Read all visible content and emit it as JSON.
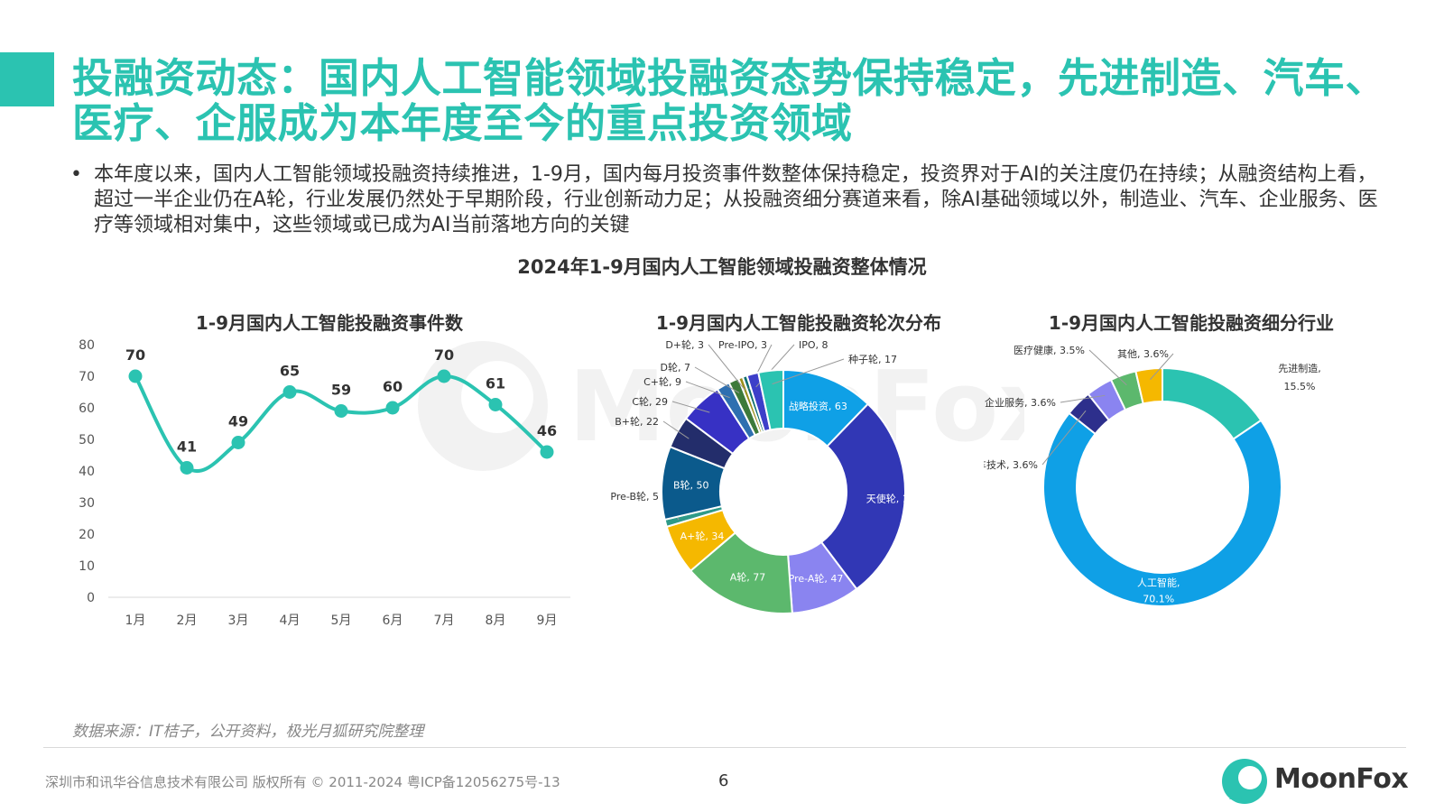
{
  "title": "投融资动态：国内人工智能领域投融资态势保持稳定，先进制造、汽车、医疗、企服成为本年度至今的重点投资领域",
  "bullet": {
    "symbol": "•",
    "text": "本年度以来，国内人工智能领域投融资持续推进，1-9月，国内每月投资事件数整体保持稳定，投资界对于AI的关注度仍在持续；从融资结构上看，超过一半企业仍在A轮，行业发展仍然处于早期阶段，行业创新动力足；从投融资细分赛道来看，除AI基础领域以外，制造业、汽车、企业服务、医疗等领域相对集中，这些领域或已成为AI当前落地方向的关键"
  },
  "main_title": "2024年1-9月国内人工智能领域投融资整体情况",
  "colors": {
    "accent": "#2bc3b1",
    "line": "#2bc3b1"
  },
  "chart_data": [
    {
      "type": "line",
      "title": "1-9月国内人工智能投融资事件数",
      "categories": [
        "1月",
        "2月",
        "3月",
        "4月",
        "5月",
        "6月",
        "7月",
        "8月",
        "9月"
      ],
      "values": [
        70,
        41,
        49,
        65,
        59,
        60,
        70,
        61,
        46
      ],
      "ylim": [
        0,
        80
      ],
      "yticks": [
        "0",
        "10",
        "20",
        "30",
        "40",
        "50",
        "60",
        "70",
        "80"
      ],
      "grid": false
    },
    {
      "type": "pie",
      "title": "1-9月国内人工智能投融资轮次分布",
      "slices": [
        {
          "label": "战略投资, 63",
          "value": 63,
          "color": "#0fa0e6"
        },
        {
          "label": "天使轮, 142",
          "value": 142,
          "color": "#3137b5"
        },
        {
          "label": "Pre-A轮, 47",
          "value": 47,
          "color": "#8a84f0"
        },
        {
          "label": "A轮, 77",
          "value": 77,
          "color": "#5cb86d"
        },
        {
          "label": "A+轮, 34",
          "value": 34,
          "color": "#f5b800"
        },
        {
          "label": "Pre-B轮, 5",
          "value": 5,
          "color": "#2f9a88"
        },
        {
          "label": "B轮, 50",
          "value": 50,
          "color": "#0b5a8c"
        },
        {
          "label": "B+轮, 22",
          "value": 22,
          "color": "#232d6b"
        },
        {
          "label": "C轮, 29",
          "value": 29,
          "color": "#3731c4"
        },
        {
          "label": "C+轮, 9",
          "value": 9,
          "color": "#2e6fb0"
        },
        {
          "label": "D轮, 7",
          "value": 7,
          "color": "#3d7a3a"
        },
        {
          "label": "D+轮, 3",
          "value": 3,
          "color": "#9a8f1c"
        },
        {
          "label": "Pre-IPO, 3",
          "value": 3,
          "color": "#0d6e6e"
        },
        {
          "label": "IPO, 8",
          "value": 8,
          "color": "#3d3fc9"
        },
        {
          "label": "种子轮, 17",
          "value": 17,
          "color": "#2bc3b1"
        }
      ]
    },
    {
      "type": "pie",
      "title": "1-9月国内人工智能投融资细分行业",
      "slices": [
        {
          "label": "先进制造,",
          "pct": "15.5%",
          "value": 15.5,
          "color": "#2bc3b1"
        },
        {
          "label": "人工智能,",
          "pct": "70.1%",
          "value": 70.1,
          "color": "#0fa0e6"
        },
        {
          "label": "汽车技术, 3.6%",
          "value": 3.6,
          "color": "#2d2f8c"
        },
        {
          "label": "企业服务, 3.6%",
          "value": 3.6,
          "color": "#8a84f0"
        },
        {
          "label": "医疗健康, 3.5%",
          "value": 3.5,
          "color": "#5cb86d"
        },
        {
          "label": "其他, 3.6%",
          "value": 3.6,
          "color": "#f5b800"
        }
      ]
    }
  ],
  "footer": {
    "source": "数据来源：IT桔子，公开资料，极光月狐研究院整理",
    "copyright": "深圳市和讯华谷信息技术有限公司 版权所有 © 2011-2024 粤ICP备12056275号-13",
    "page": "6",
    "brand": "MoonFox",
    "watermark": "MoonFox"
  }
}
